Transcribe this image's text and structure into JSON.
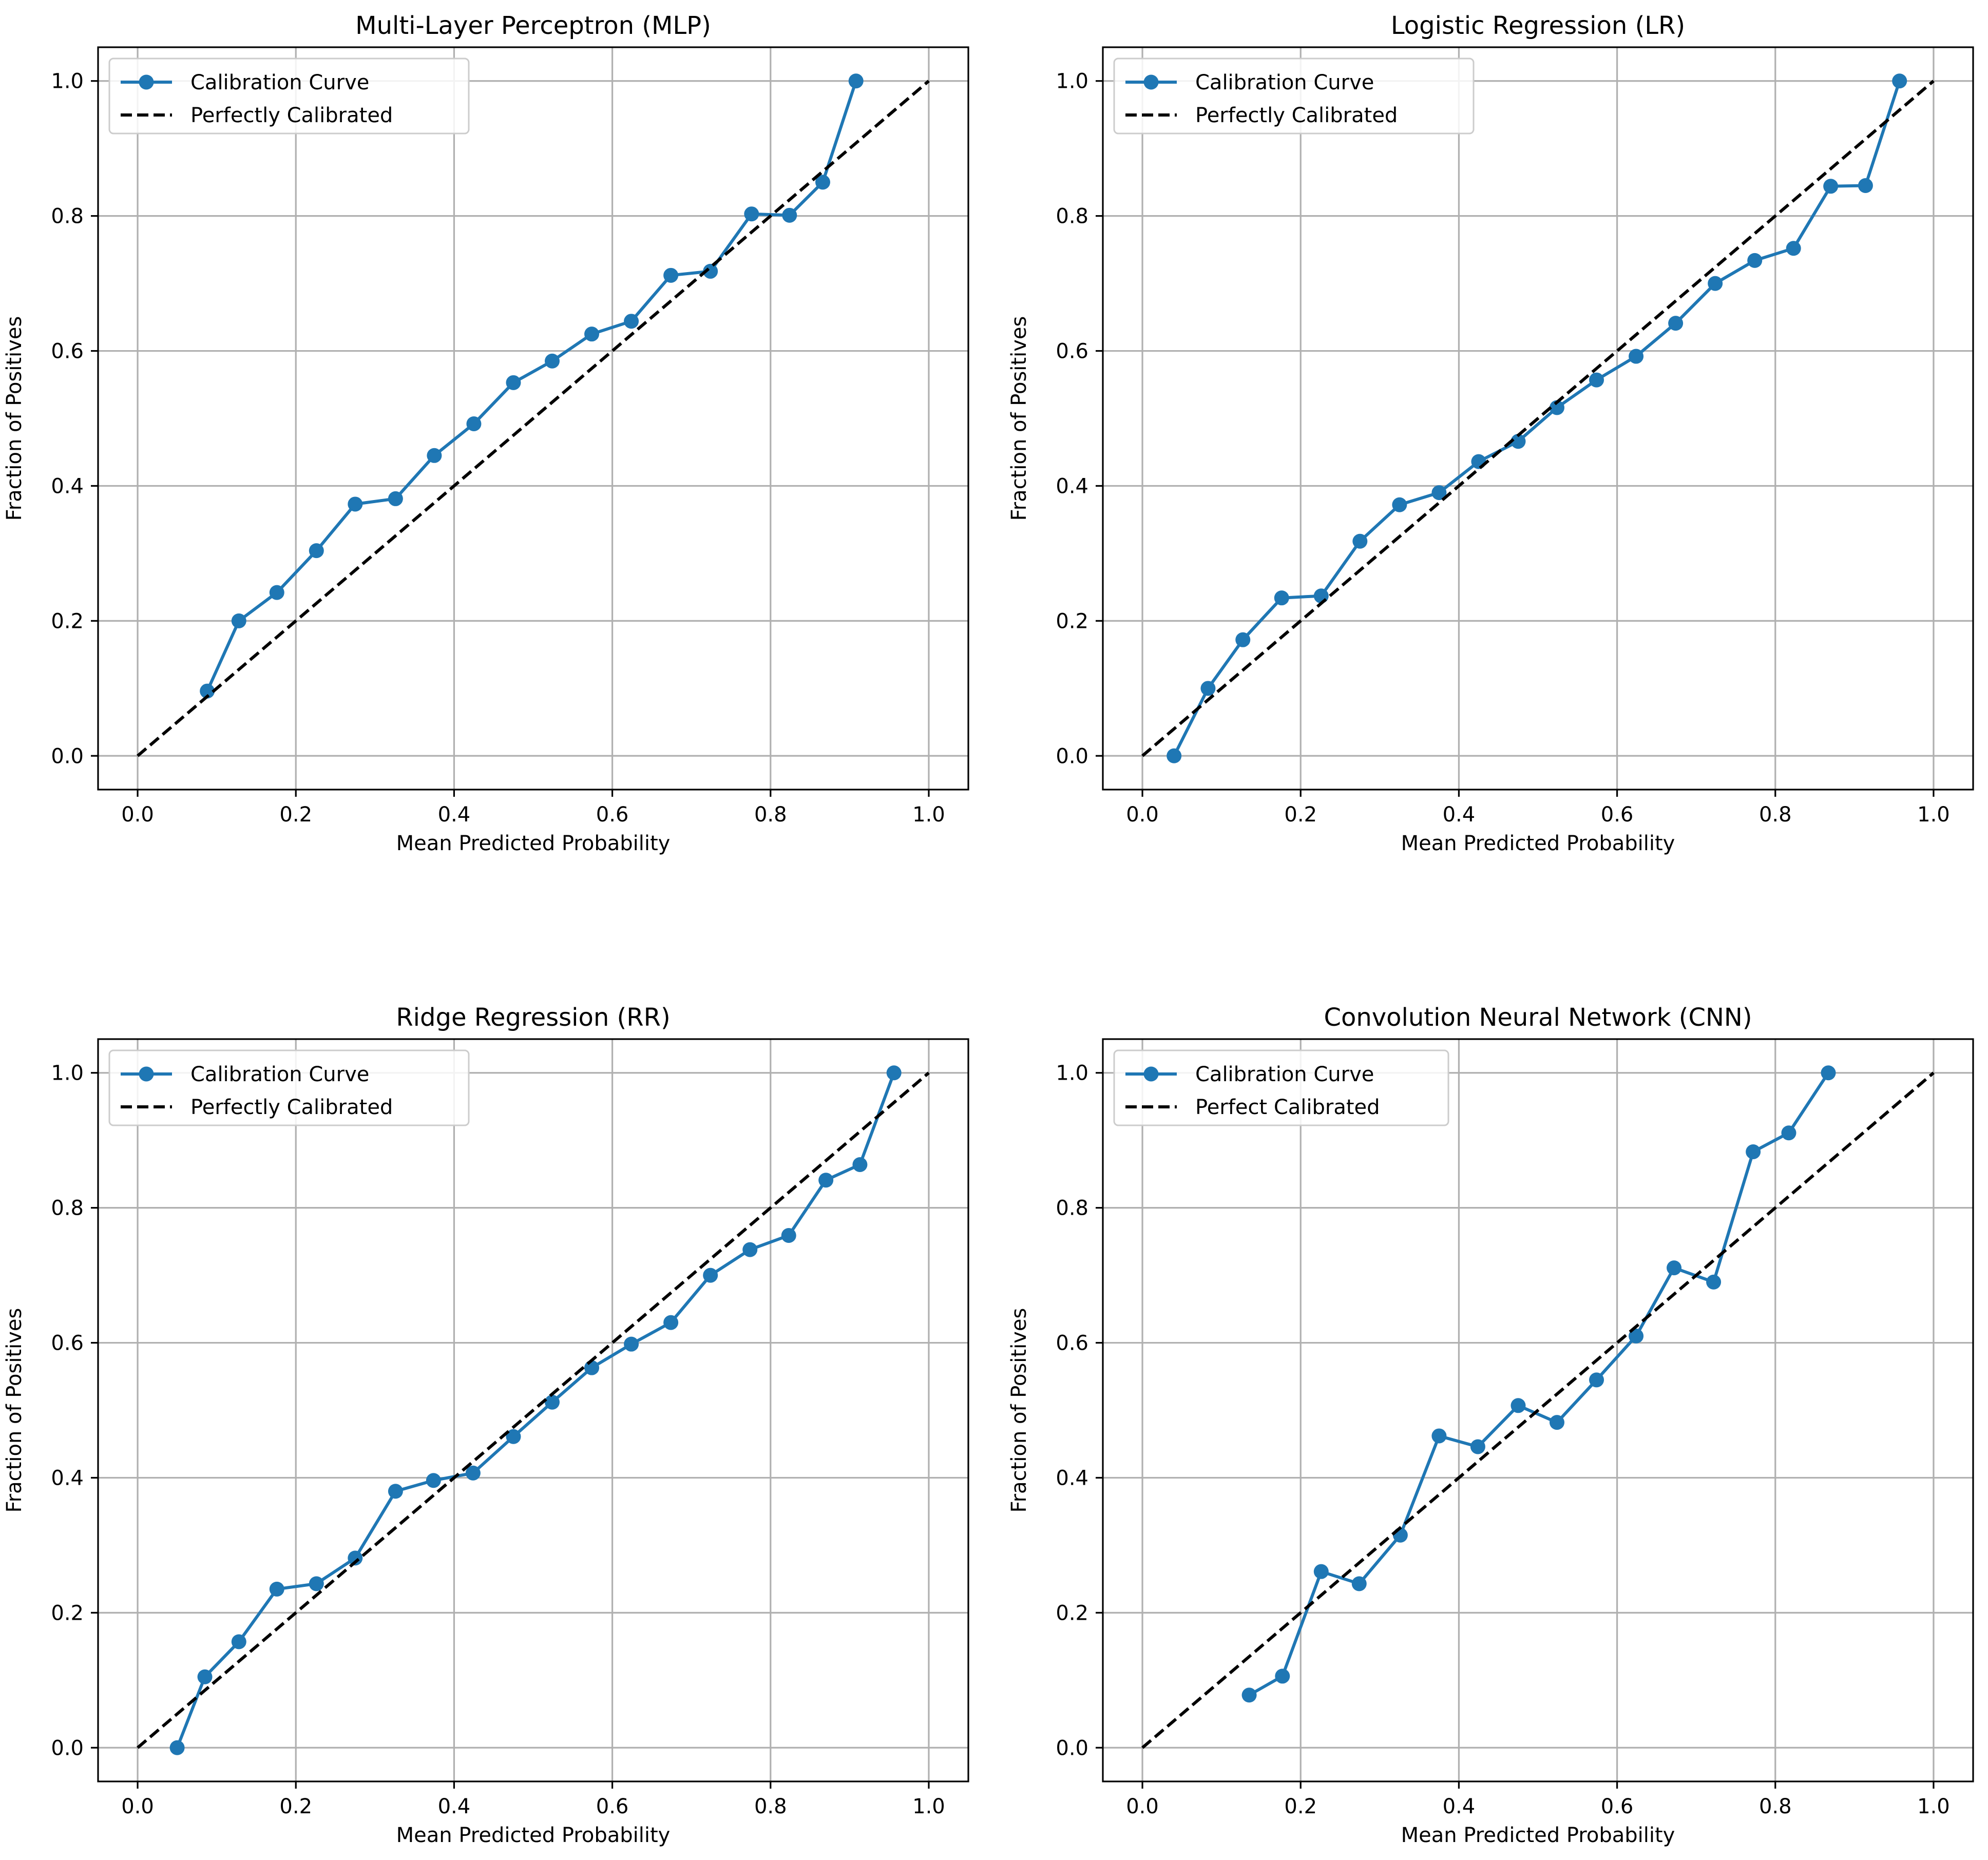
{
  "colors": {
    "curve": "#1f77b4",
    "reference": "#000000",
    "grid": "#b0b0b0",
    "axes": "#000000",
    "legend_border": "#cccccc"
  },
  "chart_data": [
    {
      "type": "line",
      "title": "Multi-Layer Perceptron (MLP)",
      "xlabel": "Mean Predicted Probability",
      "ylabel": "Fraction of Positives",
      "xlim": [
        -0.05,
        1.05
      ],
      "ylim": [
        -0.05,
        1.05
      ],
      "xticks": [
        "0.0",
        "0.2",
        "0.4",
        "0.6",
        "0.8",
        "1.0"
      ],
      "yticks": [
        "0.0",
        "0.2",
        "0.4",
        "0.6",
        "0.8",
        "1.0"
      ],
      "grid": true,
      "legend_position": "upper-left",
      "series": [
        {
          "name": "Calibration Curve",
          "style": "solid-with-markers",
          "x": [
            0.088,
            0.128,
            0.176,
            0.226,
            0.275,
            0.326,
            0.375,
            0.425,
            0.475,
            0.524,
            0.574,
            0.624,
            0.674,
            0.724,
            0.776,
            0.824,
            0.866,
            0.908
          ],
          "y": [
            0.096,
            0.2,
            0.242,
            0.304,
            0.373,
            0.381,
            0.445,
            0.492,
            0.553,
            0.585,
            0.625,
            0.644,
            0.712,
            0.718,
            0.803,
            0.801,
            0.85,
            1.0
          ]
        },
        {
          "name": "Perfectly Calibrated",
          "style": "dashed",
          "x": [
            0.0,
            1.0
          ],
          "y": [
            0.0,
            1.0
          ]
        }
      ]
    },
    {
      "type": "line",
      "title": "Logistic Regression (LR)",
      "xlabel": "Mean Predicted Probability",
      "ylabel": "Fraction of Positives",
      "xlim": [
        -0.05,
        1.05
      ],
      "ylim": [
        -0.05,
        1.05
      ],
      "xticks": [
        "0.0",
        "0.2",
        "0.4",
        "0.6",
        "0.8",
        "1.0"
      ],
      "yticks": [
        "0.0",
        "0.2",
        "0.4",
        "0.6",
        "0.8",
        "1.0"
      ],
      "grid": true,
      "legend_position": "upper-left",
      "series": [
        {
          "name": "Calibration Curve",
          "style": "solid-with-markers",
          "x": [
            0.04,
            0.083,
            0.127,
            0.176,
            0.226,
            0.275,
            0.325,
            0.375,
            0.425,
            0.475,
            0.524,
            0.574,
            0.624,
            0.674,
            0.724,
            0.774,
            0.823,
            0.87,
            0.914,
            0.957
          ],
          "y": [
            0.0,
            0.1,
            0.172,
            0.234,
            0.237,
            0.318,
            0.372,
            0.39,
            0.436,
            0.466,
            0.516,
            0.557,
            0.592,
            0.641,
            0.7,
            0.734,
            0.752,
            0.844,
            0.845,
            1.0
          ]
        },
        {
          "name": "Perfectly Calibrated",
          "style": "dashed",
          "x": [
            0.0,
            1.0
          ],
          "y": [
            0.0,
            1.0
          ]
        }
      ]
    },
    {
      "type": "line",
      "title": "Ridge Regression (RR)",
      "xlabel": "Mean Predicted Probability",
      "ylabel": "Fraction of Positives",
      "xlim": [
        -0.05,
        1.05
      ],
      "ylim": [
        -0.05,
        1.05
      ],
      "xticks": [
        "0.0",
        "0.2",
        "0.4",
        "0.6",
        "0.8",
        "1.0"
      ],
      "yticks": [
        "0.0",
        "0.2",
        "0.4",
        "0.6",
        "0.8",
        "1.0"
      ],
      "grid": true,
      "legend_position": "upper-left",
      "series": [
        {
          "name": "Calibration Curve",
          "style": "solid-with-markers",
          "x": [
            0.05,
            0.085,
            0.128,
            0.176,
            0.226,
            0.275,
            0.326,
            0.374,
            0.424,
            0.475,
            0.524,
            0.574,
            0.624,
            0.674,
            0.724,
            0.774,
            0.823,
            0.87,
            0.913,
            0.956
          ],
          "y": [
            0.0,
            0.105,
            0.157,
            0.235,
            0.243,
            0.281,
            0.38,
            0.396,
            0.407,
            0.461,
            0.512,
            0.563,
            0.598,
            0.63,
            0.7,
            0.738,
            0.759,
            0.841,
            0.864,
            1.0
          ]
        },
        {
          "name": "Perfectly Calibrated",
          "style": "dashed",
          "x": [
            0.0,
            1.0
          ],
          "y": [
            0.0,
            1.0
          ]
        }
      ]
    },
    {
      "type": "line",
      "title": "Convolution Neural Network (CNN)",
      "xlabel": "Mean Predicted Probability",
      "ylabel": "Fraction of Positives",
      "xlim": [
        -0.05,
        1.05
      ],
      "ylim": [
        -0.05,
        1.05
      ],
      "xticks": [
        "0.0",
        "0.2",
        "0.4",
        "0.6",
        "0.8",
        "1.0"
      ],
      "yticks": [
        "0.0",
        "0.2",
        "0.4",
        "0.6",
        "0.8",
        "1.0"
      ],
      "grid": true,
      "legend_position": "upper-left",
      "series": [
        {
          "name": "Calibration Curve",
          "style": "solid-with-markers",
          "x": [
            0.135,
            0.177,
            0.226,
            0.274,
            0.326,
            0.375,
            0.424,
            0.475,
            0.524,
            0.574,
            0.624,
            0.672,
            0.722,
            0.772,
            0.817,
            0.867
          ],
          "y": [
            0.078,
            0.106,
            0.261,
            0.243,
            0.315,
            0.462,
            0.446,
            0.507,
            0.482,
            0.545,
            0.61,
            0.711,
            0.69,
            0.883,
            0.911,
            1.0
          ]
        },
        {
          "name": "Perfect Calibrated",
          "style": "dashed",
          "x": [
            0.0,
            1.0
          ],
          "y": [
            0.0,
            1.0
          ]
        }
      ]
    }
  ]
}
